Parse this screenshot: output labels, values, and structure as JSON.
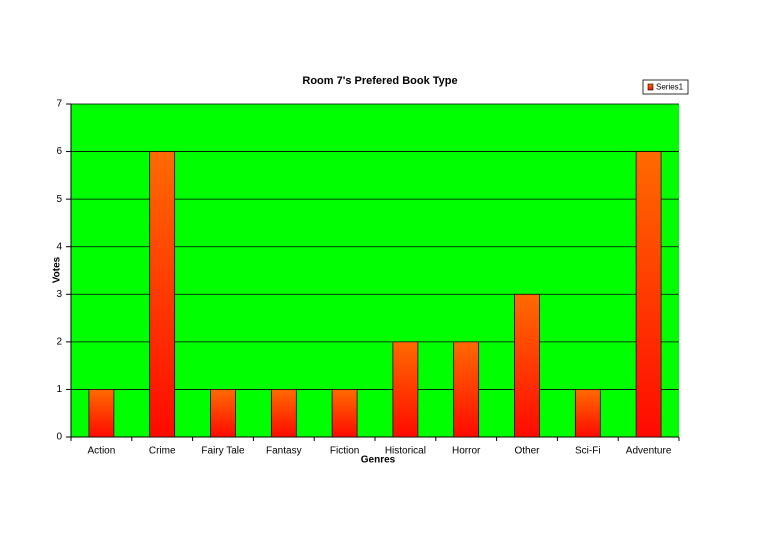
{
  "chart_data": {
    "type": "bar",
    "title": "Room 7's Prefered Book Type",
    "xlabel": "Genres",
    "ylabel": "Votes",
    "categories": [
      "Action",
      "Crime",
      "Fairy Tale",
      "Fantasy",
      "Fiction",
      "Historical",
      "Horror",
      "Other",
      "Sci-Fi",
      "Adventure"
    ],
    "series": [
      {
        "name": "Series1",
        "color": "#ff6a00",
        "gradient_end": "#ff0a00",
        "values": [
          1,
          6,
          1,
          1,
          1,
          2,
          2,
          3,
          1,
          6
        ]
      }
    ],
    "ylim": [
      0,
      7
    ],
    "yticks": [
      0,
      1,
      2,
      3,
      4,
      5,
      6,
      7
    ],
    "grid": true,
    "plot_background": "#00ff00",
    "legend": "top-right"
  }
}
